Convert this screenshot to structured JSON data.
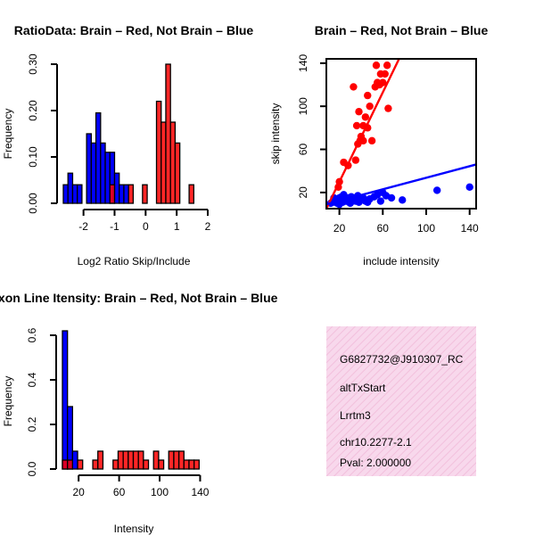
{
  "chart_data": [
    {
      "type": "bar",
      "id": "ratio",
      "title": "RatioData: Brain – Red, Not Brain – Blue",
      "xlabel": "Log2 Ratio Skip/Include",
      "ylabel": "Frequency",
      "xlim": [
        -2.65,
        2.0
      ],
      "ylim": [
        0,
        0.3
      ],
      "xticks": [
        "-2",
        "-1",
        "0",
        "1",
        "2"
      ],
      "xtick_values": [
        -2,
        -1,
        0,
        1,
        2
      ],
      "yticks": [
        "0.00",
        "0.10",
        "0.20",
        "0.30"
      ],
      "ytick_values": [
        0,
        0.1,
        0.2,
        0.3
      ],
      "bin_width": 0.15,
      "series": [
        {
          "name": "Not Brain",
          "color": "#0000ff",
          "bars": [
            {
              "x0": -2.65,
              "y": 0.04
            },
            {
              "x0": -2.5,
              "y": 0.065
            },
            {
              "x0": -2.35,
              "y": 0.04
            },
            {
              "x0": -2.2,
              "y": 0.04
            },
            {
              "x0": -1.9,
              "y": 0.15
            },
            {
              "x0": -1.75,
              "y": 0.13
            },
            {
              "x0": -1.6,
              "y": 0.195
            },
            {
              "x0": -1.45,
              "y": 0.13
            },
            {
              "x0": -1.3,
              "y": 0.11
            },
            {
              "x0": -1.15,
              "y": 0.11
            },
            {
              "x0": -1.0,
              "y": 0.065
            },
            {
              "x0": -0.85,
              "y": 0.04
            },
            {
              "x0": -0.7,
              "y": 0.04
            }
          ]
        },
        {
          "name": "Brain",
          "color": "#ff0000",
          "bars": [
            {
              "x0": -1.15,
              "y": 0.04
            },
            {
              "x0": -0.55,
              "y": 0.04
            },
            {
              "x0": -0.1,
              "y": 0.04
            },
            {
              "x0": 0.35,
              "y": 0.22
            },
            {
              "x0": 0.5,
              "y": 0.175
            },
            {
              "x0": 0.65,
              "y": 0.3
            },
            {
              "x0": 0.8,
              "y": 0.175
            },
            {
              "x0": 0.95,
              "y": 0.13
            },
            {
              "x0": 1.4,
              "y": 0.04
            }
          ]
        }
      ]
    },
    {
      "type": "scatter",
      "id": "scatter",
      "title": "Brain – Red, Not Brain – Blue",
      "xlabel": "include intensity",
      "ylabel": "skip intensity",
      "xlim": [
        8,
        146
      ],
      "ylim": [
        5,
        144
      ],
      "xticks": [
        "20",
        "60",
        "100",
        "140"
      ],
      "xtick_values": [
        20,
        60,
        100,
        140
      ],
      "yticks": [
        "20",
        "60",
        "100",
        "140"
      ],
      "ytick_values": [
        20,
        60,
        100,
        140
      ],
      "series": [
        {
          "name": "Brain",
          "color": "#ff0000",
          "points": [
            [
              54,
              138
            ],
            [
              58,
              130
            ],
            [
              55,
              122
            ],
            [
              57,
              120
            ],
            [
              53,
              118
            ],
            [
              62,
              130
            ],
            [
              60,
              122
            ],
            [
              64,
              138
            ],
            [
              33,
              118
            ],
            [
              46,
              110
            ],
            [
              48,
              100
            ],
            [
              38,
              95
            ],
            [
              44,
              90
            ],
            [
              65,
              98
            ],
            [
              42,
              82
            ],
            [
              46,
              80
            ],
            [
              36,
              82
            ],
            [
              40,
              72
            ],
            [
              39,
              68
            ],
            [
              42,
              68
            ],
            [
              37,
              65
            ],
            [
              50,
              68
            ],
            [
              24,
              48
            ],
            [
              28,
              45
            ],
            [
              35,
              50
            ],
            [
              20,
              30
            ],
            [
              19,
              25
            ]
          ]
        },
        {
          "name": "Not Brain",
          "color": "#0000ff",
          "points": [
            [
              12,
              10
            ],
            [
              14,
              11
            ],
            [
              15,
              12
            ],
            [
              16,
              13
            ],
            [
              17,
              12
            ],
            [
              18,
              10
            ],
            [
              19,
              14
            ],
            [
              20,
              15
            ],
            [
              21,
              13
            ],
            [
              22,
              12
            ],
            [
              22,
              16
            ],
            [
              23,
              11
            ],
            [
              25,
              14
            ],
            [
              26,
              12
            ],
            [
              27,
              13
            ],
            [
              28,
              15
            ],
            [
              29,
              11
            ],
            [
              30,
              14
            ],
            [
              31,
              16
            ],
            [
              32,
              12
            ],
            [
              33,
              13
            ],
            [
              34,
              15
            ],
            [
              35,
              12
            ],
            [
              36,
              14
            ],
            [
              37,
              17
            ],
            [
              38,
              11
            ],
            [
              40,
              13
            ],
            [
              42,
              15
            ],
            [
              44,
              12
            ],
            [
              46,
              11
            ],
            [
              48,
              14
            ],
            [
              52,
              16
            ],
            [
              55,
              18
            ],
            [
              58,
              12
            ],
            [
              60,
              20
            ],
            [
              63,
              17
            ],
            [
              68,
              15
            ],
            [
              78,
              13
            ],
            [
              110,
              22
            ],
            [
              140,
              25
            ],
            [
              24,
              18
            ],
            [
              30,
              10
            ],
            [
              15,
              15
            ],
            [
              20,
              9
            ]
          ]
        }
      ],
      "fit_lines": [
        {
          "color": "#ff0000",
          "x": [
            8,
            75
          ],
          "y": [
            5,
            144
          ]
        },
        {
          "color": "#0000ff",
          "x": [
            8,
            146
          ],
          "y": [
            9,
            46
          ]
        }
      ]
    },
    {
      "type": "bar",
      "id": "intensity",
      "title": "Exon Line Itensity: Brain – Red, Not Brain – Blue",
      "xlabel": "Intensity",
      "ylabel": "Frequency",
      "xlim": [
        4,
        144
      ],
      "ylim": [
        0,
        0.62
      ],
      "xticks": [
        "20",
        "60",
        "100",
        "140"
      ],
      "xtick_values": [
        20,
        60,
        100,
        140
      ],
      "yticks": [
        "0.0",
        "0.2",
        "0.4",
        "0.6"
      ],
      "ytick_values": [
        0,
        0.2,
        0.4,
        0.6
      ],
      "bin_width": 5,
      "series": [
        {
          "name": "Not Brain",
          "color": "#0000ff",
          "bars": [
            {
              "x0": 4,
              "y": 0.62
            },
            {
              "x0": 9,
              "y": 0.28
            },
            {
              "x0": 14,
              "y": 0.08
            }
          ]
        },
        {
          "name": "Brain",
          "color": "#ff0000",
          "bars": [
            {
              "x0": 4,
              "y": 0.04
            },
            {
              "x0": 9,
              "y": 0.04
            },
            {
              "x0": 19,
              "y": 0.04
            },
            {
              "x0": 34,
              "y": 0.04
            },
            {
              "x0": 39,
              "y": 0.08
            },
            {
              "x0": 54,
              "y": 0.04
            },
            {
              "x0": 59,
              "y": 0.08
            },
            {
              "x0": 64,
              "y": 0.08
            },
            {
              "x0": 69,
              "y": 0.08
            },
            {
              "x0": 74,
              "y": 0.08
            },
            {
              "x0": 79,
              "y": 0.08
            },
            {
              "x0": 84,
              "y": 0.04
            },
            {
              "x0": 94,
              "y": 0.08
            },
            {
              "x0": 99,
              "y": 0.04
            },
            {
              "x0": 109,
              "y": 0.08
            },
            {
              "x0": 114,
              "y": 0.08
            },
            {
              "x0": 119,
              "y": 0.08
            },
            {
              "x0": 124,
              "y": 0.04
            },
            {
              "x0": 129,
              "y": 0.04
            },
            {
              "x0": 134,
              "y": 0.04
            }
          ]
        }
      ]
    }
  ],
  "info_panel": {
    "probe_id": "G6827732@J910307_RC",
    "event_type": "altTxStart",
    "gene": "Lrrtm3",
    "location": "chr10.2277-2.1",
    "pval": "Pval: 2.000000",
    "bg_color": "#f8d8ec",
    "pval_color": "#cc0000"
  }
}
